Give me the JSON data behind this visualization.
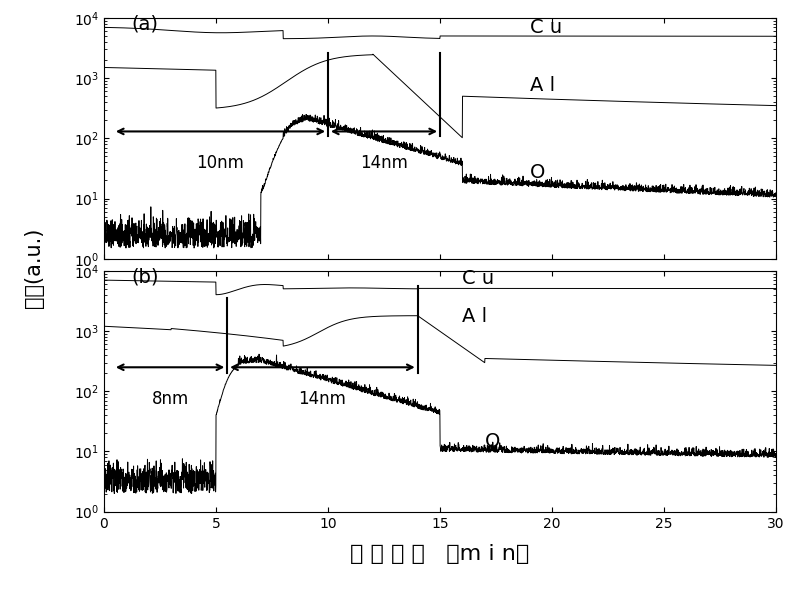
{
  "xlim": [
    0,
    30
  ],
  "ylim_log": [
    1.0,
    10000.0
  ],
  "xlabel": "濡 射 时 间   （m i n）",
  "ylabel": "强度(a.u.)",
  "panel_a_label": "(a)",
  "panel_b_label": "(b)",
  "vline_a1_x": 10.0,
  "vline_a2_x": 15.0,
  "vline_b1_x": 5.5,
  "vline_b2_x": 14.0,
  "label_Cu": "C u",
  "label_Al": "A l",
  "label_O": "O",
  "tick_fontsize": 10,
  "label_fontsize": 14,
  "annot_fontsize": 12
}
